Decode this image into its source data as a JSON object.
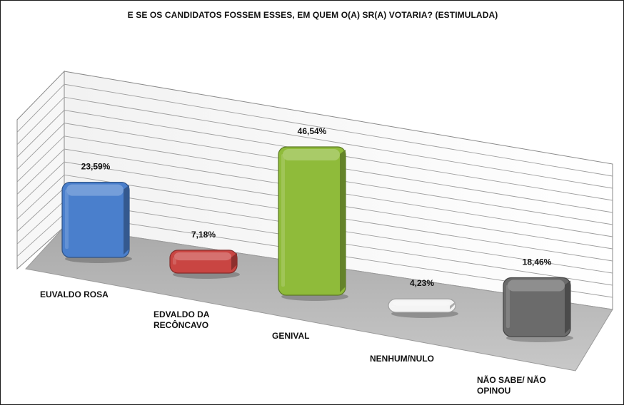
{
  "chart_data": {
    "type": "bar",
    "title": "E SE OS CANDIDATOS FOSSEM ESSES, EM QUEM O(A) SR(A) VOTARIA? (ESTIMULADA)",
    "categories": [
      "EUVALDO ROSA",
      "EDVALDO DA RECÔNCAVO",
      "GENIVAL",
      "NENHUM/NULO",
      "NÃO SABE/ NÃO OPINOU"
    ],
    "category_lines": [
      [
        "EUVALDO ROSA"
      ],
      [
        "EDVALDO DA",
        "RECÔNCAVO"
      ],
      [
        "GENIVAL"
      ],
      [
        "NENHUM/NULO"
      ],
      [
        "NÃO SABE/ NÃO",
        "OPINOU"
      ]
    ],
    "values": [
      23.59,
      7.18,
      46.54,
      4.23,
      18.46
    ],
    "value_labels": [
      "23,59%",
      "7,18%",
      "46,54%",
      "4,23%",
      "18,46%"
    ],
    "bar_colors": [
      "#4a7fcc",
      "#c94542",
      "#8fbb3a",
      "#f4f4f4",
      "#6b6b6b"
    ],
    "ylim": [
      0,
      60
    ],
    "grid": true,
    "style": "3d-perspective"
  }
}
